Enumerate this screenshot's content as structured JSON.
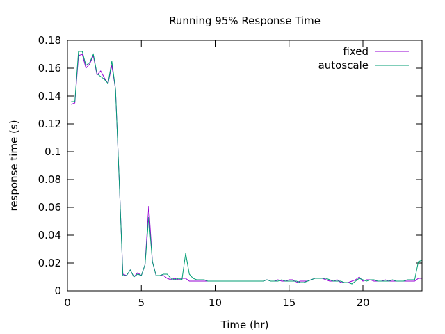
{
  "chart_data": {
    "type": "line",
    "title": "Running 95% Response Time",
    "xlabel": "Time (hr)",
    "ylabel": "response time (s)",
    "xlim": [
      0,
      24
    ],
    "ylim": [
      0,
      0.18
    ],
    "xticks": [
      0,
      5,
      10,
      15,
      20
    ],
    "xtick_labels": [
      "0",
      "5",
      "10",
      "15",
      "20"
    ],
    "yticks": [
      0,
      0.02,
      0.04,
      0.06,
      0.08,
      0.1,
      0.12,
      0.14,
      0.16,
      0.18
    ],
    "ytick_labels": [
      "0",
      "0.02",
      "0.04",
      "0.06",
      "0.08",
      "0.1",
      "0.12",
      "0.14",
      "0.16",
      "0.18"
    ],
    "grid": false,
    "legend_position": "top-right",
    "x_start": 0.25,
    "x_step": 0.25,
    "series": [
      {
        "name": "fixed",
        "color": "#9400d3",
        "values": [
          0.134,
          0.135,
          0.169,
          0.17,
          0.16,
          0.163,
          0.169,
          0.155,
          0.158,
          0.153,
          0.149,
          0.162,
          0.145,
          0.08,
          0.012,
          0.011,
          0.015,
          0.01,
          0.013,
          0.011,
          0.019,
          0.061,
          0.021,
          0.011,
          0.011,
          0.011,
          0.009,
          0.008,
          0.009,
          0.008,
          0.009,
          0.009,
          0.007,
          0.007,
          0.007,
          0.007,
          0.007,
          0.007,
          0.007,
          0.007,
          0.007,
          0.007,
          0.007,
          0.007,
          0.007,
          0.007,
          0.007,
          0.007,
          0.007,
          0.007,
          0.007,
          0.007,
          0.007,
          0.008,
          0.007,
          0.007,
          0.008,
          0.007,
          0.007,
          0.008,
          0.008,
          0.006,
          0.007,
          0.007,
          0.007,
          0.008,
          0.009,
          0.009,
          0.009,
          0.008,
          0.007,
          0.007,
          0.008,
          0.006,
          0.006,
          0.006,
          0.007,
          0.008,
          0.01,
          0.007,
          0.008,
          0.008,
          0.007,
          0.007,
          0.007,
          0.008,
          0.007,
          0.007,
          0.007,
          0.007,
          0.007,
          0.007,
          0.007,
          0.007,
          0.009,
          0.009
        ]
      },
      {
        "name": "autoscale",
        "color": "#009e73",
        "values": [
          0.136,
          0.136,
          0.172,
          0.172,
          0.162,
          0.164,
          0.17,
          0.156,
          0.154,
          0.152,
          0.149,
          0.165,
          0.145,
          0.08,
          0.011,
          0.011,
          0.015,
          0.01,
          0.012,
          0.011,
          0.019,
          0.053,
          0.021,
          0.011,
          0.011,
          0.012,
          0.012,
          0.009,
          0.008,
          0.009,
          0.008,
          0.027,
          0.012,
          0.009,
          0.008,
          0.008,
          0.008,
          0.007,
          0.007,
          0.007,
          0.007,
          0.007,
          0.007,
          0.007,
          0.007,
          0.007,
          0.007,
          0.007,
          0.007,
          0.007,
          0.007,
          0.007,
          0.007,
          0.008,
          0.007,
          0.007,
          0.007,
          0.008,
          0.007,
          0.007,
          0.007,
          0.007,
          0.006,
          0.006,
          0.007,
          0.008,
          0.009,
          0.009,
          0.009,
          0.009,
          0.008,
          0.007,
          0.007,
          0.007,
          0.006,
          0.006,
          0.005,
          0.007,
          0.009,
          0.008,
          0.007,
          0.008,
          0.008,
          0.007,
          0.007,
          0.007,
          0.007,
          0.008,
          0.007,
          0.007,
          0.007,
          0.008,
          0.008,
          0.008,
          0.021,
          0.022
        ]
      }
    ]
  }
}
